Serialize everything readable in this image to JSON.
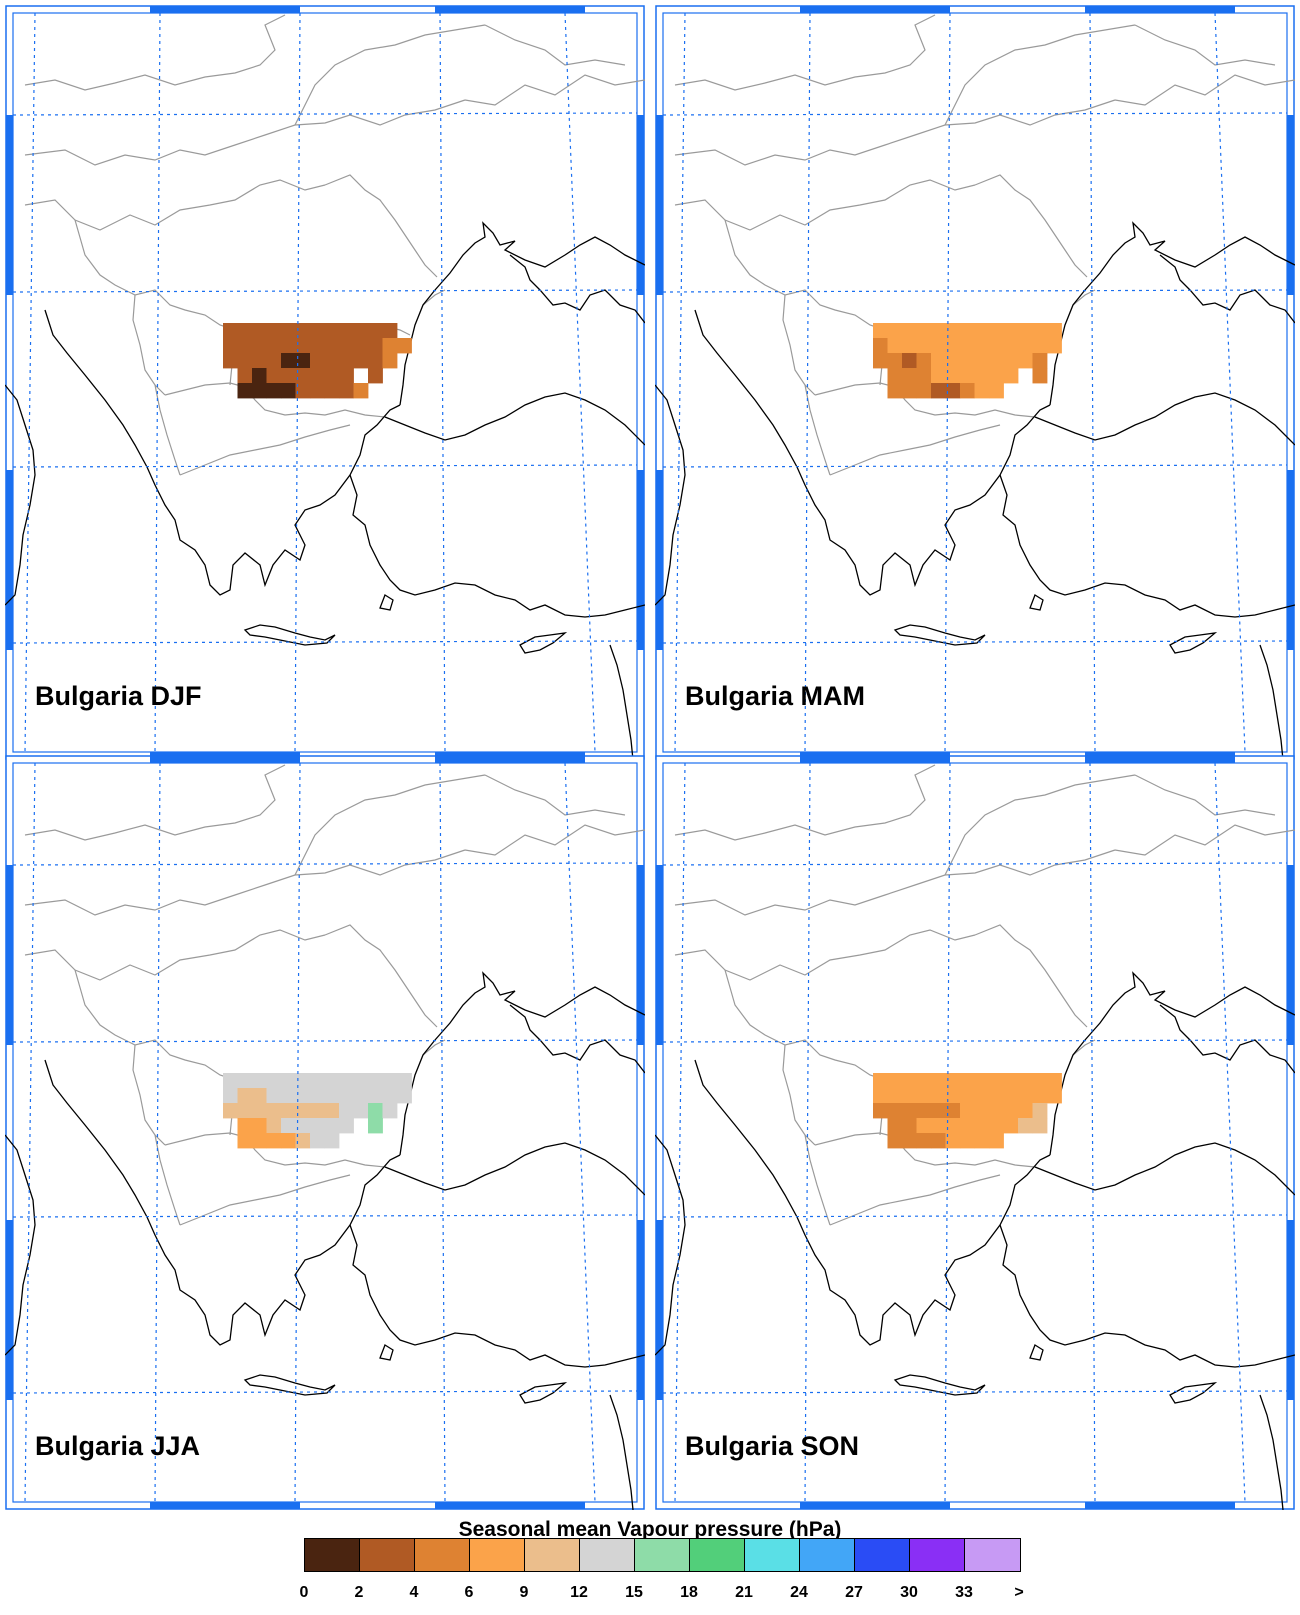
{
  "panels": [
    {
      "label": "Bulgaria DJF",
      "season": "DJF",
      "cells": [
        [
          1,
          1,
          1,
          1,
          1,
          1,
          1,
          1,
          1,
          1,
          1,
          1,
          null
        ],
        [
          1,
          1,
          1,
          1,
          1,
          1,
          1,
          1,
          1,
          1,
          1,
          2,
          2
        ],
        [
          1,
          1,
          1,
          1,
          0,
          0,
          1,
          1,
          1,
          1,
          1,
          2,
          null
        ],
        [
          null,
          1,
          0,
          1,
          1,
          1,
          1,
          1,
          1,
          null,
          1,
          null,
          null
        ],
        [
          null,
          0,
          0,
          0,
          0,
          1,
          1,
          1,
          1,
          2,
          null,
          null,
          null
        ]
      ]
    },
    {
      "label": "Bulgaria MAM",
      "season": "MAM",
      "cells": [
        [
          3,
          3,
          3,
          3,
          3,
          3,
          3,
          3,
          3,
          3,
          3,
          3,
          3
        ],
        [
          2,
          3,
          3,
          3,
          3,
          3,
          3,
          3,
          3,
          3,
          3,
          3,
          3
        ],
        [
          2,
          2,
          1,
          2,
          3,
          3,
          3,
          3,
          3,
          3,
          3,
          2,
          null
        ],
        [
          null,
          2,
          2,
          2,
          3,
          3,
          3,
          3,
          3,
          3,
          null,
          2,
          null
        ],
        [
          null,
          2,
          2,
          2,
          1,
          1,
          2,
          3,
          3,
          null,
          null,
          null,
          null
        ]
      ]
    },
    {
      "label": "Bulgaria JJA",
      "season": "JJA",
      "cells": [
        [
          5,
          5,
          5,
          5,
          5,
          5,
          5,
          5,
          5,
          5,
          5,
          5,
          5
        ],
        [
          5,
          4,
          4,
          5,
          5,
          5,
          5,
          5,
          5,
          5,
          5,
          5,
          5
        ],
        [
          4,
          4,
          4,
          4,
          4,
          4,
          4,
          4,
          5,
          5,
          6,
          5,
          null
        ],
        [
          null,
          3,
          3,
          4,
          5,
          5,
          5,
          5,
          5,
          null,
          6,
          null,
          null
        ],
        [
          null,
          3,
          3,
          3,
          3,
          4,
          5,
          5,
          null,
          null,
          null,
          null,
          null
        ]
      ]
    },
    {
      "label": "Bulgaria SON",
      "season": "SON",
      "cells": [
        [
          3,
          3,
          3,
          3,
          3,
          3,
          3,
          3,
          3,
          3,
          3,
          3,
          3
        ],
        [
          3,
          3,
          3,
          3,
          3,
          3,
          3,
          3,
          3,
          3,
          3,
          3,
          3
        ],
        [
          2,
          2,
          2,
          2,
          2,
          2,
          3,
          3,
          3,
          3,
          3,
          4,
          null
        ],
        [
          null,
          2,
          2,
          3,
          3,
          3,
          3,
          3,
          3,
          3,
          4,
          4,
          null
        ],
        [
          null,
          2,
          2,
          2,
          2,
          3,
          3,
          3,
          3,
          null,
          null,
          null,
          null
        ]
      ]
    }
  ],
  "legend": {
    "title": "Seasonal mean Vapour pressure (hPa)",
    "ticks": [
      "0",
      "2",
      "4",
      "6",
      "9",
      "12",
      "15",
      "18",
      "21",
      "24",
      "27",
      "30",
      "33",
      ">"
    ],
    "colors": [
      "#4a2410",
      "#b05a24",
      "#de8232",
      "#fba34a",
      "#ebbe8c",
      "#d4d4d4",
      "#8edca8",
      "#52cf7a",
      "#5adfe6",
      "#42a6f7",
      "#2a4cf5",
      "#8a2ff5",
      "#c79af4"
    ]
  },
  "map_style": {
    "frame_color": "#1a6ff0",
    "graticule_color": "#1a6ff0",
    "coast_color": "#000000",
    "border_color": "#9a9a9a"
  }
}
